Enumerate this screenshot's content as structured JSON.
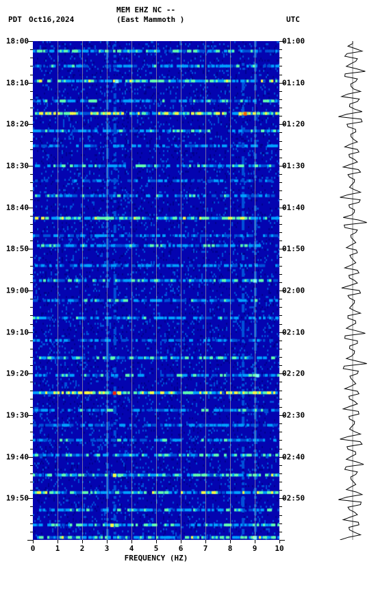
{
  "header": {
    "pdt_label": "PDT",
    "date": "Oct16,2024",
    "station": "MEM EHZ NC --",
    "location": "(East Mammoth )",
    "utc_label": "UTC"
  },
  "spectrogram": {
    "type": "spectrogram",
    "x_label": "FREQUENCY (HZ)",
    "x_min": 0,
    "x_max": 10,
    "x_ticks": [
      0,
      1,
      2,
      3,
      4,
      5,
      6,
      7,
      8,
      9,
      10
    ],
    "y_left_ticks": [
      "18:00",
      "18:10",
      "18:20",
      "18:30",
      "18:40",
      "18:50",
      "19:00",
      "19:10",
      "19:20",
      "19:30",
      "19:40",
      "19:50"
    ],
    "y_right_ticks": [
      "01:00",
      "01:10",
      "01:20",
      "01:30",
      "01:40",
      "01:50",
      "02:00",
      "02:10",
      "02:20",
      "02:30",
      "02:40",
      "02:50"
    ],
    "minor_ticks_per_interval": 5,
    "background_color": "#0404b0",
    "colormap": {
      "low": "#0000a0",
      "mid1": "#0050d8",
      "mid2": "#00a0ff",
      "mid3": "#60ffb0",
      "high": "#ffff40",
      "peak": "#ff2000"
    },
    "grid_color": "#e8d898",
    "horizontal_bands": [
      {
        "t": 0.02,
        "intensity": 0.55
      },
      {
        "t": 0.05,
        "intensity": 0.45
      },
      {
        "t": 0.08,
        "intensity": 0.6
      },
      {
        "t": 0.12,
        "intensity": 0.5
      },
      {
        "t": 0.145,
        "intensity": 0.75
      },
      {
        "t": 0.18,
        "intensity": 0.5
      },
      {
        "t": 0.21,
        "intensity": 0.42
      },
      {
        "t": 0.25,
        "intensity": 0.55
      },
      {
        "t": 0.28,
        "intensity": 0.4
      },
      {
        "t": 0.31,
        "intensity": 0.48
      },
      {
        "t": 0.355,
        "intensity": 0.62
      },
      {
        "t": 0.39,
        "intensity": 0.4
      },
      {
        "t": 0.41,
        "intensity": 0.5
      },
      {
        "t": 0.45,
        "intensity": 0.42
      },
      {
        "t": 0.48,
        "intensity": 0.55
      },
      {
        "t": 0.52,
        "intensity": 0.48
      },
      {
        "t": 0.555,
        "intensity": 0.46
      },
      {
        "t": 0.6,
        "intensity": 0.4
      },
      {
        "t": 0.635,
        "intensity": 0.52
      },
      {
        "t": 0.67,
        "intensity": 0.5
      },
      {
        "t": 0.705,
        "intensity": 0.72
      },
      {
        "t": 0.74,
        "intensity": 0.45
      },
      {
        "t": 0.77,
        "intensity": 0.4
      },
      {
        "t": 0.8,
        "intensity": 0.48
      },
      {
        "t": 0.83,
        "intensity": 0.52
      },
      {
        "t": 0.87,
        "intensity": 0.58
      },
      {
        "t": 0.905,
        "intensity": 0.65
      },
      {
        "t": 0.94,
        "intensity": 0.5
      },
      {
        "t": 0.97,
        "intensity": 0.55
      },
      {
        "t": 0.995,
        "intensity": 0.6
      }
    ],
    "hotspots": [
      {
        "t": 0.145,
        "f": 8.4,
        "color": "#ffff40"
      },
      {
        "t": 0.145,
        "f": 8.6,
        "color": "#ff6000"
      },
      {
        "t": 0.705,
        "f": 3.3,
        "color": "#ff2000"
      },
      {
        "t": 0.705,
        "f": 3.5,
        "color": "#ffff40"
      },
      {
        "t": 0.635,
        "f": 3.2,
        "color": "#60ffb0"
      },
      {
        "t": 0.87,
        "f": 3.3,
        "color": "#ffff40"
      },
      {
        "t": 0.87,
        "f": 3.5,
        "color": "#60ffb0"
      },
      {
        "t": 0.97,
        "f": 3.2,
        "color": "#ffff40"
      },
      {
        "t": 0.97,
        "f": 3.4,
        "color": "#60ffb0"
      },
      {
        "t": 0.355,
        "f": 3.0,
        "color": "#60ffb0"
      },
      {
        "t": 0.08,
        "f": 3.4,
        "color": "#80ffff"
      },
      {
        "t": 0.48,
        "f": 9.0,
        "color": "#80ffff"
      },
      {
        "t": 0.67,
        "f": 9.1,
        "color": "#80ffff"
      },
      {
        "t": 0.995,
        "f": 9.0,
        "color": "#80ffff"
      }
    ]
  },
  "waveform": {
    "center_amplitude": 0,
    "color": "#000000",
    "samples": [
      0.0,
      0.3,
      0.6,
      0.5,
      0.2,
      0.4,
      0.8,
      0.5,
      0.2,
      0.1,
      0.5,
      0.7,
      0.3,
      0.2,
      0.6,
      0.9,
      0.6,
      0.3,
      0.2,
      0.1,
      0.3,
      0.5,
      0.4,
      0.2,
      0.3,
      0.6,
      0.5,
      0.2,
      0.1,
      0.2,
      0.5,
      0.8,
      0.4,
      0.2,
      0.1,
      0.6,
      0.9,
      0.5,
      0.2,
      0.1,
      0.2,
      0.4,
      0.3,
      0.1,
      0.2,
      0.5,
      0.4,
      0.2,
      0.3,
      0.7,
      0.5,
      0.2,
      0.1,
      0.2,
      0.5,
      0.3,
      0.2,
      0.4,
      0.8,
      0.5,
      0.3,
      0.2,
      0.1,
      0.4,
      0.9,
      0.6,
      0.3,
      0.1,
      0.2,
      0.5,
      0.4,
      0.2,
      0.3,
      0.6,
      0.4,
      0.2,
      0.1,
      0.2,
      0.5,
      0.8,
      0.6,
      0.3,
      0.2,
      0.4,
      0.7,
      0.5,
      0.2,
      0.1,
      0.2,
      0.4,
      0.6,
      0.9,
      0.5,
      0.2,
      0.3,
      0.6,
      0.4,
      0.2,
      0.5,
      0.8
    ]
  }
}
